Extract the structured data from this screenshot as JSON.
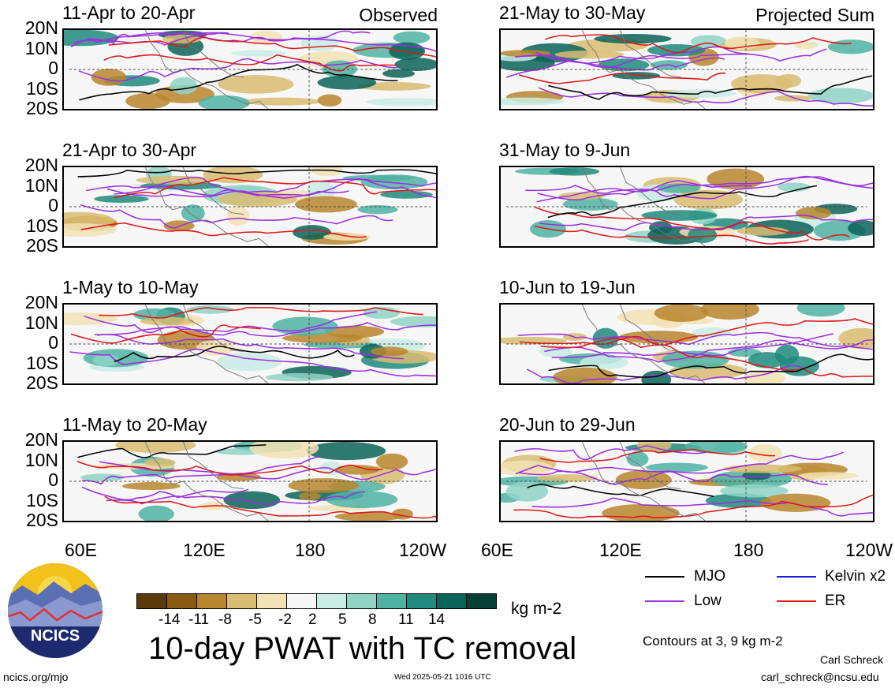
{
  "panels": [
    {
      "title": "11-Apr to 20-Apr",
      "tag": "Observed"
    },
    {
      "title": "21-Apr to 30-Apr",
      "tag": ""
    },
    {
      "title": "1-May to 10-May",
      "tag": ""
    },
    {
      "title": "11-May to 20-May",
      "tag": ""
    },
    {
      "title": "21-May to 30-May",
      "tag": "Projected Sum"
    },
    {
      "title": "31-May to 9-Jun",
      "tag": ""
    },
    {
      "title": "10-Jun to 19-Jun",
      "tag": ""
    },
    {
      "title": "20-Jun to 29-Jun",
      "tag": ""
    }
  ],
  "lat_labels": [
    "20N",
    "10N",
    "0",
    "10S",
    "20S"
  ],
  "lon_labels": [
    "60E",
    "120E",
    "180",
    "120W"
  ],
  "colorbar": {
    "colors": [
      "#5a3a0a",
      "#8a5a12",
      "#b8862e",
      "#d9bc72",
      "#f2e2b4",
      "#f7f7f7",
      "#c9ece4",
      "#8fd3c5",
      "#4fb3a3",
      "#1f8a7d",
      "#0a6358",
      "#053f36"
    ],
    "labels": [
      "-14",
      "-11",
      "-8",
      "-5",
      "-2",
      "2",
      "5",
      "8",
      "11",
      "14"
    ],
    "units": "kg m-2"
  },
  "main_title": "10-day PWAT with TC removal",
  "legend": [
    {
      "name": "MJO",
      "color": "#000000"
    },
    {
      "name": "Kelvin x2",
      "color": "#1a1adb"
    },
    {
      "name": "Low",
      "color": "#9b30e0"
    },
    {
      "name": "ER",
      "color": "#e01818"
    }
  ],
  "contour_note": "Contours at 3, 9 kg m-2",
  "author": "Carl Schreck",
  "email": "carl_schreck@ncsu.edu",
  "site": "ncics.org/mjo",
  "timestamp": "Wed 2025-05-21 1016 UTC",
  "logo_text": "NCICS"
}
